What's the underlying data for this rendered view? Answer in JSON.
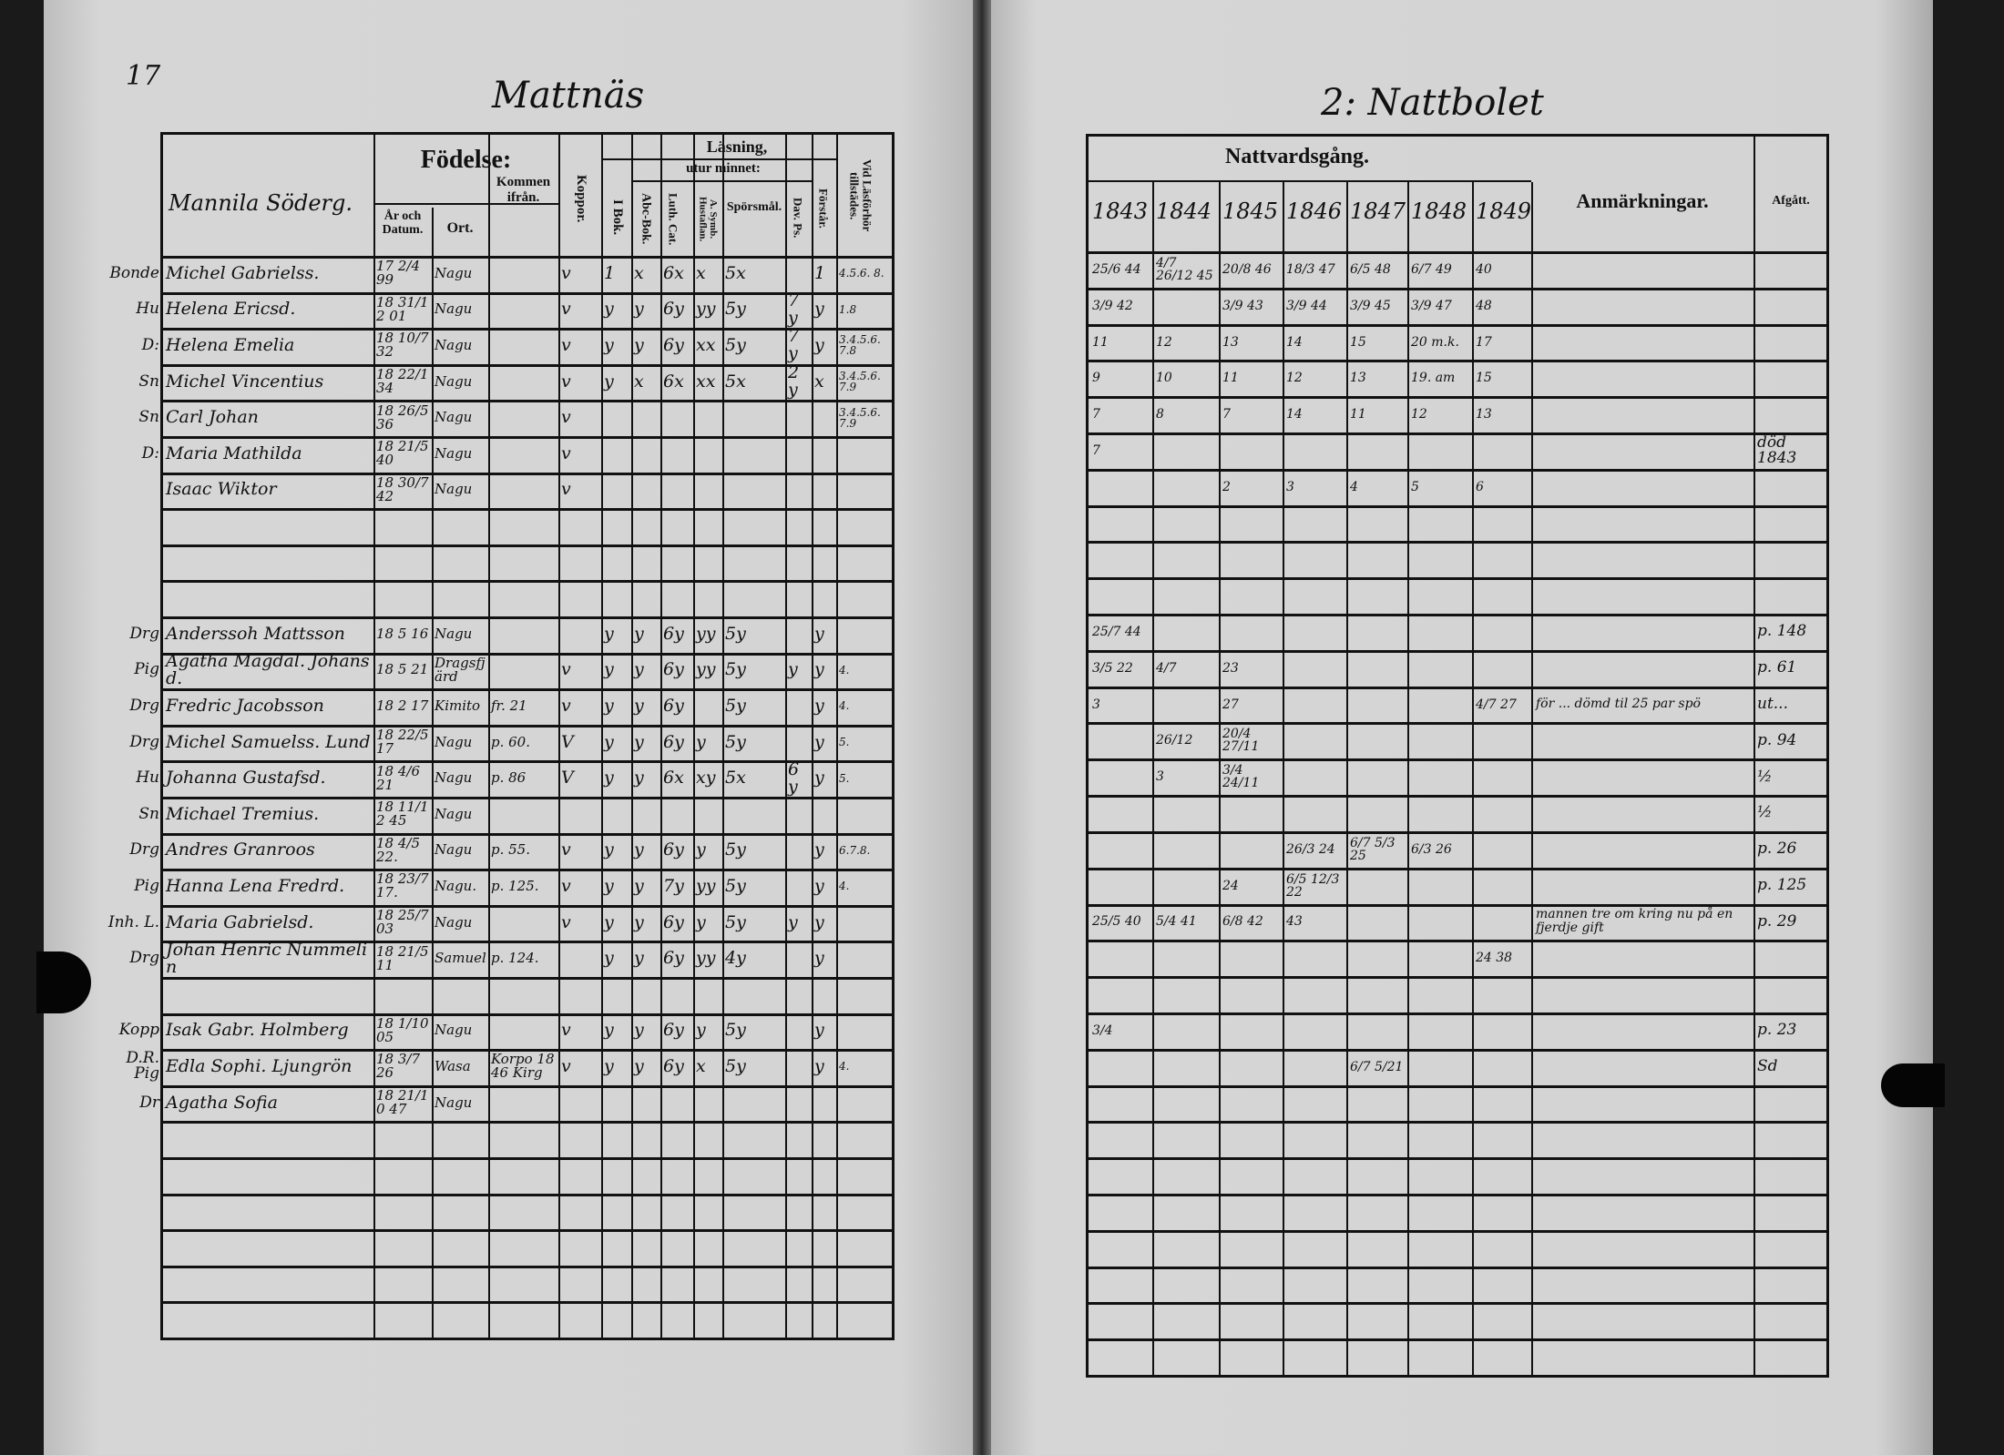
{
  "left_page": {
    "page_number": "17",
    "title": "Mattnäs",
    "header": {
      "household": "Mannila Söderg.",
      "fodelse": "Födelse:",
      "ar_och_datum": "År och Datum.",
      "ort": "Ort.",
      "kommen_ifran": "Kommen ifrån.",
      "koppor": "Koppor.",
      "lasning": "Läsning,",
      "utur_minnet": "utur minnet:",
      "i_bok": "I Bok.",
      "abc_bok": "Abc-Bok.",
      "luth_cat": "Luth. Cat.",
      "a_symb": "A. Symb. Hustaflan.",
      "sporsmal": "Spörsmål.",
      "dav_ps": "Dav. Ps.",
      "forstar": "Förstår.",
      "vid_lasforhor": "Vid Läsförhör tillstädes."
    },
    "rows": [
      {
        "i": 0,
        "role": "Bonde",
        "name": "Michel Gabrielss.",
        "born": "17 2/4 99",
        "ort": "Nagu",
        "from": "",
        "koppor": "v",
        "ibok": "1",
        "abc": "x",
        "luth": "6x",
        "symb": "x",
        "spor": "5x",
        "dav": "",
        "forst": "1",
        "forhor": "4.5.6. 8."
      },
      {
        "i": 1,
        "role": "Hu",
        "name": "Helena Ericsd.",
        "born": "18 31/12 01",
        "ort": "Nagu",
        "from": "",
        "koppor": "v",
        "ibok": "y",
        "abc": "y",
        "luth": "6y",
        "symb": "yy",
        "spor": "5y",
        "dav": "7 y",
        "forst": "y",
        "forhor": "1.8"
      },
      {
        "i": 2,
        "role": "D:",
        "name": "Helena Emelia",
        "born": "18 10/7 32",
        "ort": "Nagu",
        "from": "",
        "koppor": "v",
        "ibok": "y",
        "abc": "y",
        "luth": "6y",
        "symb": "xx",
        "spor": "5y",
        "dav": "7 y",
        "forst": "y",
        "forhor": "3.4.5.6. 7.8"
      },
      {
        "i": 3,
        "role": "Sn",
        "name": "Michel Vincentius",
        "born": "18 22/1 34",
        "ort": "Nagu",
        "from": "",
        "koppor": "v",
        "ibok": "y",
        "abc": "x",
        "luth": "6x",
        "symb": "xx",
        "spor": "5x",
        "dav": "2 y",
        "forst": "x",
        "forhor": "3.4.5.6. 7.9"
      },
      {
        "i": 4,
        "role": "Sn",
        "name": "Carl Johan",
        "born": "18 26/5 36",
        "ort": "Nagu",
        "from": "",
        "koppor": "v",
        "ibok": "",
        "abc": "",
        "luth": "",
        "symb": "",
        "spor": "",
        "dav": "",
        "forst": "",
        "forhor": "3.4.5.6. 7.9"
      },
      {
        "i": 5,
        "role": "D:",
        "name": "Maria Mathilda",
        "born": "18 21/5 40",
        "ort": "Nagu",
        "from": "",
        "koppor": "v",
        "ibok": "",
        "abc": "",
        "luth": "",
        "symb": "",
        "spor": "",
        "dav": "",
        "forst": "",
        "forhor": ""
      },
      {
        "i": 6,
        "role": "",
        "name": "Isaac Wiktor",
        "born": "18 30/7 42",
        "ort": "Nagu",
        "from": "",
        "koppor": "v",
        "ibok": "",
        "abc": "",
        "luth": "",
        "symb": "",
        "spor": "",
        "dav": "",
        "forst": "",
        "forhor": ""
      },
      {
        "i": 10,
        "role": "Drg",
        "name": "Anderssoh Mattsson",
        "born": "18 5 16",
        "ort": "Nagu",
        "from": "",
        "koppor": "",
        "ibok": "y",
        "abc": "y",
        "luth": "6y",
        "symb": "yy",
        "spor": "5y",
        "dav": "",
        "forst": "y",
        "forhor": ""
      },
      {
        "i": 11,
        "role": "Pig",
        "name": "Agatha Magdal. Johansd.",
        "born": "18 5 21",
        "ort": "Dragsfjärd",
        "from": "",
        "koppor": "v",
        "ibok": "y",
        "abc": "y",
        "luth": "6y",
        "symb": "yy",
        "spor": "5y",
        "dav": "y",
        "forst": "y",
        "forhor": "4."
      },
      {
        "i": 12,
        "role": "Drg",
        "name": "Fredric Jacobsson",
        "born": "18 2 17",
        "ort": "Kimito",
        "from": "fr. 21",
        "koppor": "v",
        "ibok": "y",
        "abc": "y",
        "luth": "6y",
        "symb": "",
        "spor": "5y",
        "dav": "",
        "forst": "y",
        "forhor": "4."
      },
      {
        "i": 13,
        "role": "Drg",
        "name": "Michel Samuelss. Lund",
        "born": "18 22/5 17",
        "ort": "Nagu",
        "from": "p. 60.",
        "koppor": "V",
        "ibok": "y",
        "abc": "y",
        "luth": "6y",
        "symb": "y",
        "spor": "5y",
        "dav": "",
        "forst": "y",
        "forhor": "5."
      },
      {
        "i": 14,
        "role": "Hu",
        "name": "Johanna Gustafsd.",
        "born": "18 4/6 21",
        "ort": "Nagu",
        "from": "p. 86",
        "koppor": "V",
        "ibok": "y",
        "abc": "y",
        "luth": "6x",
        "symb": "xy",
        "spor": "5x",
        "dav": "6 y",
        "forst": "y",
        "forhor": "5."
      },
      {
        "i": 15,
        "role": "Sn",
        "name": "Michael Tremius.",
        "born": "18 11/12 45",
        "ort": "Nagu",
        "from": "",
        "koppor": "",
        "ibok": "",
        "abc": "",
        "luth": "",
        "symb": "",
        "spor": "",
        "dav": "",
        "forst": "",
        "forhor": ""
      },
      {
        "i": 16,
        "role": "Drg",
        "name": "Andres Granroos",
        "born": "18 4/5 22.",
        "ort": "Nagu",
        "from": "p. 55.",
        "koppor": "v",
        "ibok": "y",
        "abc": "y",
        "luth": "6y",
        "symb": "y",
        "spor": "5y",
        "dav": "",
        "forst": "y",
        "forhor": "6.7.8."
      },
      {
        "i": 17,
        "role": "Pig",
        "name": "Hanna Lena Fredrd.",
        "born": "18 23/7 17.",
        "ort": "Nagu.",
        "from": "p. 125.",
        "koppor": "v",
        "ibok": "y",
        "abc": "y",
        "luth": "7y",
        "symb": "yy",
        "spor": "5y",
        "dav": "",
        "forst": "y",
        "forhor": "4."
      },
      {
        "i": 18,
        "role": "Inh. L.",
        "name": "Maria Gabrielsd.",
        "born": "18 25/7 03",
        "ort": "Nagu",
        "from": "",
        "koppor": "v",
        "ibok": "y",
        "abc": "y",
        "luth": "6y",
        "symb": "y",
        "spor": "5y",
        "dav": "y",
        "forst": "y",
        "forhor": ""
      },
      {
        "i": 19,
        "role": "Drg",
        "name": "Johan Henric Nummelin",
        "born": "18 21/5 11",
        "ort": "Samuel",
        "from": "p. 124.",
        "koppor": "",
        "ibok": "y",
        "abc": "y",
        "luth": "6y",
        "symb": "yy",
        "spor": "4y",
        "dav": "",
        "forst": "y",
        "forhor": ""
      },
      {
        "i": 21,
        "role": "Kopp",
        "name": "Isak Gabr. Holmberg",
        "born": "18 1/10 05",
        "ort": "Nagu",
        "from": "",
        "koppor": "v",
        "ibok": "y",
        "abc": "y",
        "luth": "6y",
        "symb": "y",
        "spor": "5y",
        "dav": "",
        "forst": "y",
        "forhor": ""
      },
      {
        "i": 22,
        "role": "D.R. Pig",
        "name": "Edla Sophi. Ljungrön",
        "born": "18 3/7 26",
        "ort": "Wasa",
        "from": "Korpo 1846 Kirg",
        "koppor": "v",
        "ibok": "y",
        "abc": "y",
        "luth": "6y",
        "symb": "x",
        "spor": "5y",
        "dav": "",
        "forst": "y",
        "forhor": "4."
      },
      {
        "i": 23,
        "role": "Dr",
        "name": "Agatha Sofia",
        "born": "18 21/10 47",
        "ort": "Nagu",
        "from": "",
        "koppor": "",
        "ibok": "",
        "abc": "",
        "luth": "",
        "symb": "",
        "spor": "",
        "dav": "",
        "forst": "",
        "forhor": ""
      }
    ]
  },
  "right_page": {
    "title": "2: Nattbolet",
    "header": {
      "nattvardsgang": "Nattvardsgång.",
      "years": [
        "1843",
        "1844",
        "1845",
        "1846",
        "1847",
        "1848",
        "1849"
      ],
      "anmarkningar": "Anmärkningar.",
      "afgatt": "Afgått."
    },
    "rows": [
      {
        "i": 0,
        "c": [
          "25/6 44",
          "4/7 26/12 45",
          "20/8 46",
          "18/3 47",
          "6/5 48",
          "6/7 49",
          "40"
        ],
        "anm": "",
        "afg": ""
      },
      {
        "i": 1,
        "c": [
          "3/9 42",
          "",
          "3/9 43",
          "3/9 44",
          "3/9 45",
          "3/9 47",
          "48"
        ],
        "anm": "",
        "afg": ""
      },
      {
        "i": 2,
        "c": [
          "11",
          "12",
          "13",
          "14",
          "15",
          "20 m.k.",
          "17"
        ],
        "anm": "",
        "afg": ""
      },
      {
        "i": 3,
        "c": [
          "9",
          "10",
          "11",
          "12",
          "13",
          "19. am",
          "15"
        ],
        "anm": "",
        "afg": ""
      },
      {
        "i": 4,
        "c": [
          "7",
          "8",
          "7",
          "14",
          "11",
          "12",
          "13"
        ],
        "anm": "",
        "afg": ""
      },
      {
        "i": 5,
        "c": [
          "7",
          "",
          "",
          "",
          "",
          "",
          ""
        ],
        "anm": "",
        "afg": "död 1843"
      },
      {
        "i": 6,
        "c": [
          "",
          "",
          "2",
          "3",
          "4",
          "5",
          "6"
        ],
        "anm": "",
        "afg": ""
      },
      {
        "i": 10,
        "c": [
          "25/7 44",
          "",
          "",
          "",
          "",
          "",
          ""
        ],
        "anm": "",
        "afg": "p. 148"
      },
      {
        "i": 11,
        "c": [
          "3/5 22",
          "4/7",
          "23",
          "",
          "",
          "",
          ""
        ],
        "anm": "",
        "afg": "p. 61"
      },
      {
        "i": 12,
        "c": [
          "3",
          "",
          "27",
          "",
          "",
          "",
          "4/7 27"
        ],
        "anm": "för ... dömd til 25 par spö",
        "afg": "ut..."
      },
      {
        "i": 13,
        "c": [
          "",
          "26/12",
          "20/4 27/11",
          "",
          "",
          "",
          ""
        ],
        "anm": "",
        "afg": "p. 94"
      },
      {
        "i": 14,
        "c": [
          "",
          "3",
          "3/4 24/11",
          "",
          "",
          "",
          ""
        ],
        "anm": "",
        "afg": "½"
      },
      {
        "i": 15,
        "c": [
          "",
          "",
          "",
          "",
          "",
          "",
          ""
        ],
        "anm": "",
        "afg": "½"
      },
      {
        "i": 16,
        "c": [
          "",
          "",
          "",
          "26/3 24",
          "6/7 5/3 25",
          "6/3 26",
          ""
        ],
        "anm": "",
        "afg": "p. 26"
      },
      {
        "i": 17,
        "c": [
          "",
          "",
          "24",
          "6/5 12/3 22",
          "",
          "",
          ""
        ],
        "anm": "",
        "afg": "p. 125"
      },
      {
        "i": 18,
        "c": [
          "25/5 40",
          "5/4 41",
          "6/8 42",
          "43",
          "",
          "",
          ""
        ],
        "anm": "mannen tre om kring nu på en fjerdje gift",
        "afg": "p. 29"
      },
      {
        "i": 19,
        "c": [
          "",
          "",
          "",
          "",
          "",
          "",
          "24 38"
        ],
        "anm": "",
        "afg": ""
      },
      {
        "i": 21,
        "c": [
          "3/4",
          "",
          "",
          "",
          "",
          "",
          ""
        ],
        "anm": "",
        "afg": "p. 23"
      },
      {
        "i": 22,
        "c": [
          "",
          "",
          "",
          "",
          "6/7 5/21",
          "",
          ""
        ],
        "anm": "",
        "afg": "Sd"
      }
    ]
  }
}
